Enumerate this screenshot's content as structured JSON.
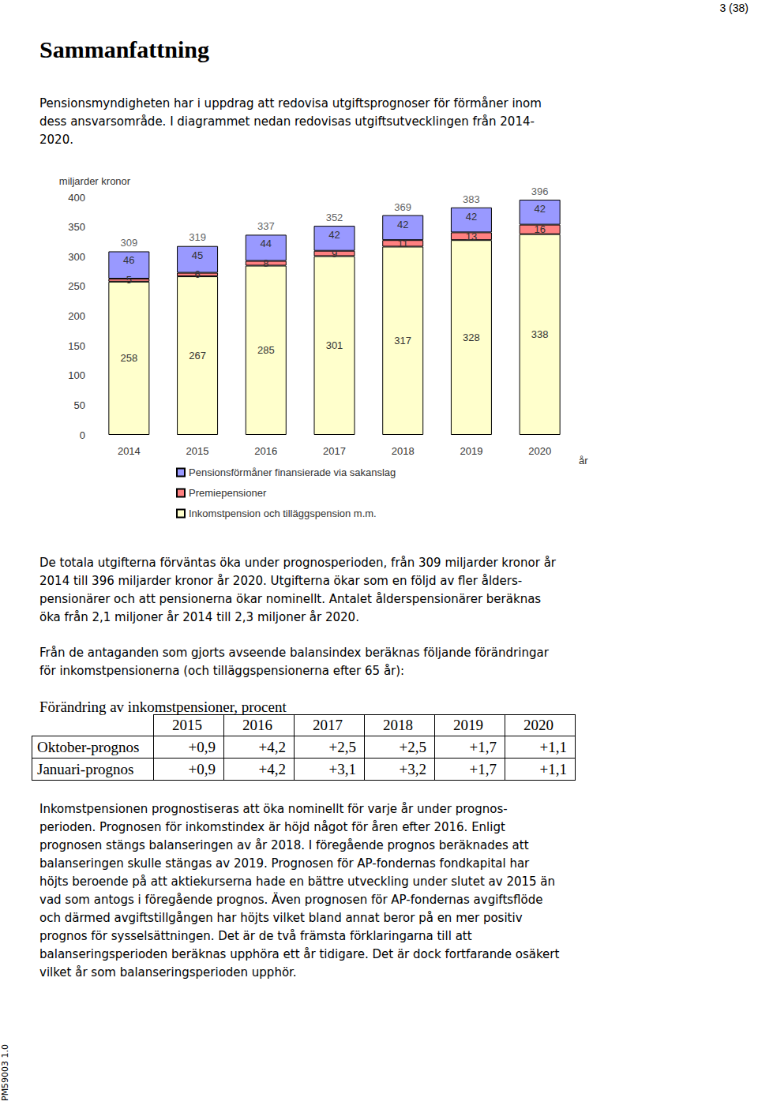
{
  "page_number": "3 (38)",
  "heading": "Sammanfattning",
  "intro": [
    "Pensionsmyndigheten har i uppdrag att redovisa utgiftsprognoser för förmåner inom",
    "dess ansvarsområde. I diagrammet nedan redovisas utgiftsutvecklingen från 2014-",
    "2020."
  ],
  "chart_data": {
    "type": "bar",
    "stacked": true,
    "data_labels": true,
    "grid": false,
    "legend": "bottom",
    "y_label": "miljarder kronor",
    "x_label": "år",
    "categories": [
      "2014",
      "2015",
      "2016",
      "2017",
      "2018",
      "2019",
      "2020"
    ],
    "series": [
      {
        "name": "Inkomstpension och tilläggspension m.m.",
        "color": "#ffffcc",
        "values": [
          258,
          267,
          285,
          301,
          317,
          328,
          338
        ]
      },
      {
        "name": "Premiepensioner",
        "color": "#ff8080",
        "values": [
          5,
          6,
          8,
          9,
          11,
          13,
          16
        ]
      },
      {
        "name": "Pensionsförmåner finansierade via sakanslag",
        "color": "#9999ff",
        "values": [
          46,
          45,
          44,
          42,
          42,
          42,
          42
        ]
      }
    ],
    "totals": [
      309,
      319,
      337,
      352,
      369,
      383,
      396
    ],
    "ylim": [
      0,
      400
    ],
    "yticks": [
      0,
      50,
      100,
      150,
      200,
      250,
      300,
      350,
      400
    ]
  },
  "summary": [
    "De totala utgifterna förväntas öka under prognosperioden, från 309 miljarder kronor år",
    "2014 till 396 miljarder kronor år 2020. Utgifterna ökar som en följd av fler ålders-",
    "pensionärer och att pensionerna ökar nominellt. Antalet ålderspensionärer beräknas",
    "öka från 2,1 miljoner år 2014 till 2,3 miljoner år 2020."
  ],
  "lead_in": [
    "Från de antaganden som gjorts avseende balansindex beräknas följande förändringar",
    "för inkomstpensionerna (och tilläggspensionerna efter 65 år):"
  ],
  "table": {
    "caption": "Förändring av inkomstpensioner, procent",
    "columns": [
      "2015",
      "2016",
      "2017",
      "2018",
      "2019",
      "2020"
    ],
    "rows": [
      {
        "label": "Oktober-prognos",
        "values": [
          "+0,9",
          "+4,2",
          "+2,5",
          "+2,5",
          "+1,7",
          "+1,1"
        ]
      },
      {
        "label": "Januari-prognos",
        "values": [
          "+0,9",
          "+4,2",
          "+3,1",
          "+3,2",
          "+1,7",
          "+1,1"
        ]
      }
    ]
  },
  "conclusion": [
    "Inkomstpensionen prognostiseras att öka nominellt för varje år under prognos-",
    "perioden. Prognosen för inkomstindex är höjd något för åren efter 2016. Enligt",
    "prognosen stängs balanseringen av år 2018. I föregående prognos beräknades att",
    "balanseringen skulle stängas av 2019. Prognosen för AP-fondernas fondkapital har",
    "höjts beroende på att aktiekurserna hade en bättre utveckling under slutet av 2015 än",
    "vad som antogs i föregående prognos. Även prognosen för AP-fondernas avgiftsflöde",
    "och därmed avgiftstillgången har höjts vilket bland annat beror på en mer positiv",
    "prognos för sysselsättningen. Det är de två främsta förklaringarna till att",
    "balanseringsperioden beräknas upphöra ett år tidigare. Det är dock fortfarande osäkert",
    "vilket år som balanseringsperioden upphör."
  ],
  "document_code": "PM59003 1.0"
}
